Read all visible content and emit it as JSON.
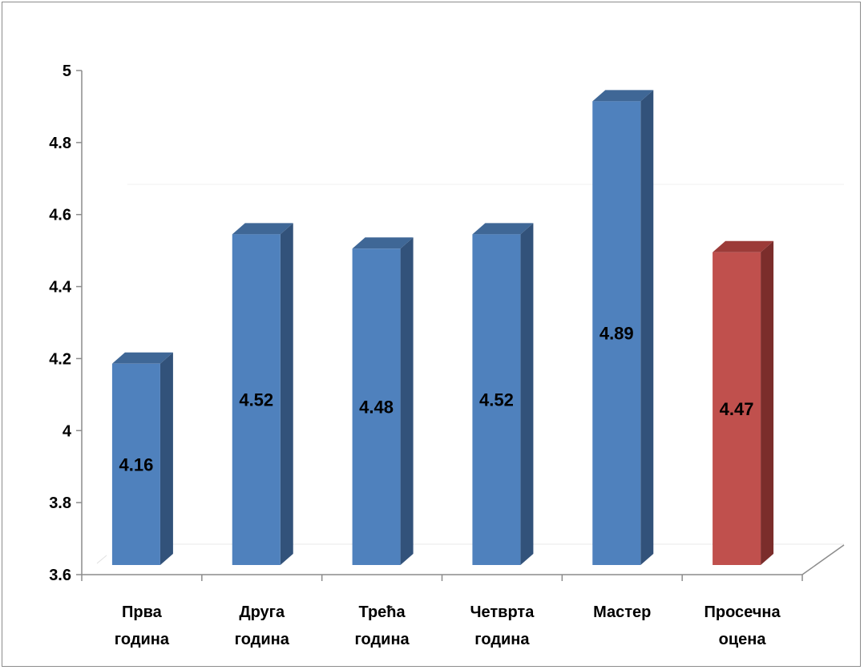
{
  "chart_data": {
    "type": "bar",
    "title": "",
    "xlabel": "",
    "ylabel": "",
    "ylim": [
      3.6,
      5
    ],
    "yticks": [
      "3.6",
      "3.8",
      "4",
      "4.2",
      "4.4",
      "4.6",
      "4.8",
      "5"
    ],
    "grid": false,
    "legend": "none",
    "categories": [
      [
        "Прва",
        "година"
      ],
      [
        "Друга",
        "година"
      ],
      [
        "Трећа",
        "година"
      ],
      [
        "Четврта",
        "година"
      ],
      [
        "Мастер"
      ],
      [
        "Просечна",
        "оцена"
      ]
    ],
    "values": [
      4.16,
      4.52,
      4.48,
      4.52,
      4.89,
      4.47
    ],
    "data_labels": [
      "4.16",
      "4.52",
      "4.48",
      "4.52",
      "4.89",
      "4.47"
    ],
    "bar_colors": [
      "#4F81BD",
      "#4F81BD",
      "#4F81BD",
      "#4F81BD",
      "#4F81BD",
      "#C0504D"
    ],
    "side_colors": [
      "#32527A",
      "#32527A",
      "#32527A",
      "#32527A",
      "#32527A",
      "#7B2D2B"
    ],
    "top_colors": [
      "#3F6796",
      "#3F6796",
      "#3F6796",
      "#3F6796",
      "#3F6796",
      "#9C3B38"
    ]
  }
}
